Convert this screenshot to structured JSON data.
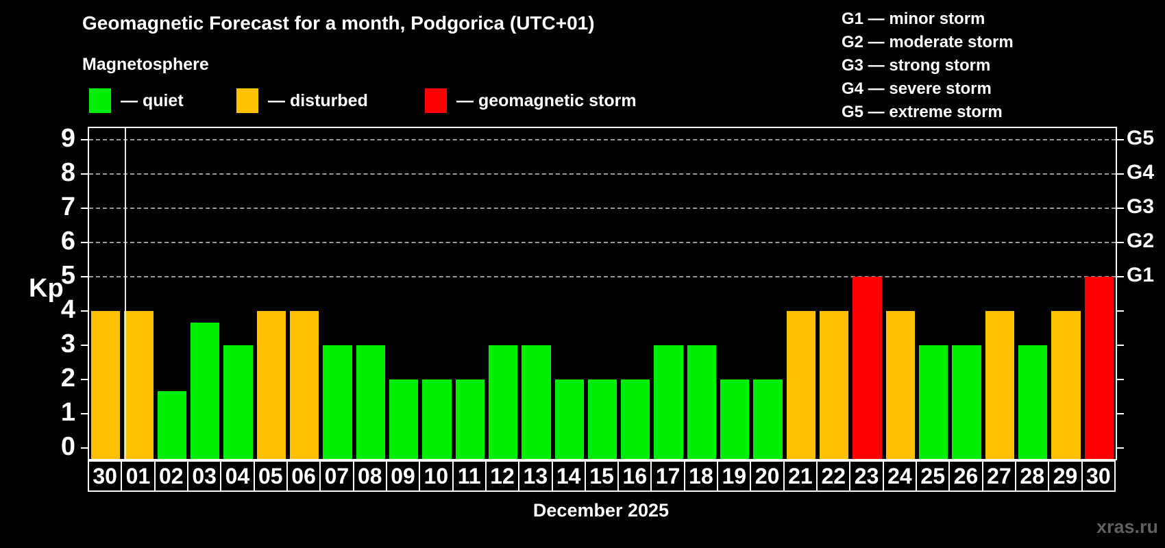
{
  "title": "Geomagnetic Forecast for a month, Podgorica (UTC+01)",
  "subtitle": "Magnetosphere",
  "legend": [
    {
      "key": "quiet",
      "label": "— quiet",
      "color": "#00ee00",
      "x": 130
    },
    {
      "key": "disturbed",
      "label": "— disturbed",
      "color": "#ffc000",
      "x": 345
    },
    {
      "key": "storm",
      "label": "— geomagnetic storm",
      "color": "#ff0000",
      "x": 620
    }
  ],
  "storm_scale": [
    {
      "code": "G1",
      "label": "G1 — minor storm",
      "kp": 5
    },
    {
      "code": "G2",
      "label": "G2 — moderate storm",
      "kp": 6
    },
    {
      "code": "G3",
      "label": "G3 — strong storm",
      "kp": 7
    },
    {
      "code": "G4",
      "label": "G4 — severe storm",
      "kp": 8
    },
    {
      "code": "G5",
      "label": "G5 — extreme storm",
      "kp": 9
    }
  ],
  "axis": {
    "y_label": "Kp",
    "y_ticks": [
      0,
      1,
      2,
      3,
      4,
      5,
      6,
      7,
      8,
      9
    ],
    "grid_levels": [
      5,
      6,
      7,
      8,
      9
    ],
    "kp_min": -0.32,
    "kp_max": 9.35
  },
  "x_axis": {
    "month_label": "December 2025"
  },
  "watermark": "xras.ru",
  "status_colors": {
    "quiet": "#00ee00",
    "disturbed": "#ffc000",
    "storm": "#ff0000"
  },
  "chart_data": {
    "type": "bar",
    "title": "Geomagnetic Forecast for a month, Podgorica (UTC+01)",
    "xlabel": "December 2025",
    "ylabel": "Kp",
    "ylim": [
      0,
      9
    ],
    "grid": "dashed horizontal lines at Kp 5,6,7,8,9 (G1–G5)",
    "legend_position": "top-left",
    "categories": [
      "30",
      "01",
      "02",
      "03",
      "04",
      "05",
      "06",
      "07",
      "08",
      "09",
      "10",
      "11",
      "12",
      "13",
      "14",
      "15",
      "16",
      "17",
      "18",
      "19",
      "20",
      "21",
      "22",
      "23",
      "24",
      "25",
      "26",
      "27",
      "28",
      "29",
      "30"
    ],
    "values": [
      4,
      4,
      1.67,
      3.67,
      3,
      4,
      4,
      3,
      3,
      2,
      2,
      2,
      3,
      3,
      2,
      2,
      2,
      3,
      3,
      2,
      2,
      4,
      4,
      5,
      4,
      3,
      3,
      4,
      3,
      4,
      5
    ],
    "statuses": [
      "disturbed",
      "disturbed",
      "quiet",
      "quiet",
      "quiet",
      "disturbed",
      "disturbed",
      "quiet",
      "quiet",
      "quiet",
      "quiet",
      "quiet",
      "quiet",
      "quiet",
      "quiet",
      "quiet",
      "quiet",
      "quiet",
      "quiet",
      "quiet",
      "quiet",
      "disturbed",
      "disturbed",
      "storm",
      "disturbed",
      "quiet",
      "quiet",
      "disturbed",
      "quiet",
      "disturbed",
      "storm"
    ],
    "separator_after_index": 0
  }
}
